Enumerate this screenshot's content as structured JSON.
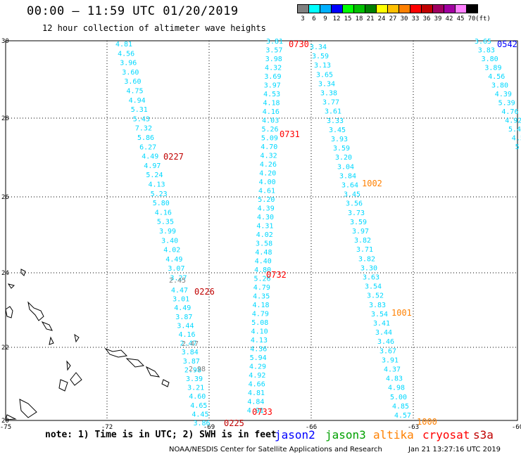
{
  "header": {
    "title": "00:00 — 11:59 UTC 01/20/2019",
    "subtitle": "12 hour collection of altimeter wave heights"
  },
  "legend": {
    "colors": [
      "#808080",
      "#00ffff",
      "#00b0ff",
      "#0000ff",
      "#00ff00",
      "#00c000",
      "#008000",
      "#ffff00",
      "#ffc000",
      "#ff8000",
      "#ff0000",
      "#c00000",
      "#a00060",
      "#a000a0",
      "#ff80ff",
      "#000000"
    ],
    "labels": [
      "3",
      "6",
      "9",
      "12",
      "15",
      "18",
      "21",
      "24",
      "27",
      "30",
      "33",
      "36",
      "39",
      "42",
      "45",
      "70"
    ],
    "unit": "(ft)"
  },
  "axes": {
    "lon_labels": [
      "-75",
      "-72",
      "-69",
      "-66",
      "-63",
      "-60"
    ],
    "lat_labels": [
      "30",
      "28",
      "26",
      "24",
      "22",
      "20"
    ]
  },
  "tracks": [
    {
      "color": "#00d8ff",
      "values": [
        "4.81",
        "4.56",
        "3.96",
        "3.60",
        "3.60",
        "4.75",
        "4.94",
        "5.31",
        "5.43",
        "7.32",
        "5.86",
        "6.27",
        "4.49",
        "4.97",
        "5.24",
        "4.13",
        "5.23",
        "5.80",
        "4.16",
        "5.35",
        "3.99",
        "3.40",
        "4.02",
        "4.49",
        "3.07",
        "3.27"
      ]
    },
    {
      "color": "#00d8ff",
      "values": [
        "4.47",
        "3.01",
        "4.49",
        "3.87",
        "3.44",
        "4.16",
        "2.47",
        "3.84",
        "3.87",
        "2.98",
        "3.39",
        "3.21",
        "4.60",
        "4.65",
        "4.45",
        "3.86"
      ]
    },
    {
      "color": "#00d8ff",
      "values": [
        "3.81",
        "3.57",
        "3.98",
        "4.32",
        "3.69",
        "3.97",
        "4.53",
        "4.18",
        "4.16",
        "4.03",
        "5.26",
        "5.09",
        "4.70",
        "4.32",
        "4.26",
        "4.20",
        "4.00",
        "4.61",
        "5.20",
        "4.39",
        "4.30",
        "4.31",
        "4.02",
        "3.58",
        "4.48",
        "4.40",
        "4.80",
        "5.26",
        "4.79",
        "4.35",
        "4.18",
        "4.79",
        "5.08",
        "4.10",
        "4.13",
        "4.36",
        "5.94",
        "4.29",
        "4.92",
        "4.66",
        "4.81",
        "4.84",
        "4.91"
      ]
    },
    {
      "color": "#00d8ff",
      "values": [
        "3.34",
        "3.59",
        "3.13",
        "3.65",
        "3.34",
        "3.38",
        "3.77",
        "3.61",
        "3.33",
        "3.45",
        "3.93",
        "3.59",
        "3.20",
        "3.04",
        "3.84",
        "3.64",
        "3.45",
        "3.56",
        "3.73",
        "3.59",
        "3.97",
        "3.82",
        "3.71",
        "3.82",
        "3.30",
        "3.63",
        "3.54",
        "3.52",
        "3.83",
        "3.54",
        "3.41",
        "3.44",
        "3.46",
        "3.67",
        "3.91",
        "4.37",
        "4.83",
        "4.98",
        "5.00",
        "4.85",
        "4.57"
      ]
    },
    {
      "color": "#00d8ff",
      "values": [
        "3.65",
        "3.83",
        "3.80",
        "3.89",
        "4.56",
        "3.80",
        "4.39",
        "5.39",
        "4.76",
        "4.92",
        "5.44",
        "4.5",
        "5.5"
      ]
    }
  ],
  "time_labels": [
    {
      "text": "0730",
      "color": "#ff0000"
    },
    {
      "text": "0542",
      "color": "#0000ff"
    },
    {
      "text": "0731",
      "color": "#ff0000"
    },
    {
      "text": "0227",
      "color": "#c00000"
    },
    {
      "text": "1002",
      "color": "#ff8000"
    },
    {
      "text": "0732",
      "color": "#ff0000"
    },
    {
      "text": "0226",
      "color": "#c00000"
    },
    {
      "text": "1001",
      "color": "#ff8000"
    },
    {
      "text": "0733",
      "color": "#ff0000"
    },
    {
      "text": "0225",
      "color": "#c00000"
    },
    {
      "text": "1000",
      "color": "#ff8000"
    }
  ],
  "footer": {
    "note": "note: 1) Time is in UTC; 2) SWH is in feet",
    "satellites": [
      {
        "name": "jason2",
        "color": "#0000ff"
      },
      {
        "name": "jason3",
        "color": "#00a000"
      },
      {
        "name": "altika",
        "color": "#ff8000"
      },
      {
        "name": "cryosat",
        "color": "#ff0000"
      },
      {
        "name": "s3a",
        "color": "#c00000"
      }
    ],
    "credit": "NOAA/NESDIS Center for Satellite Applications and Research",
    "date": "Jan 21 13:27:16 UTC 2019"
  }
}
